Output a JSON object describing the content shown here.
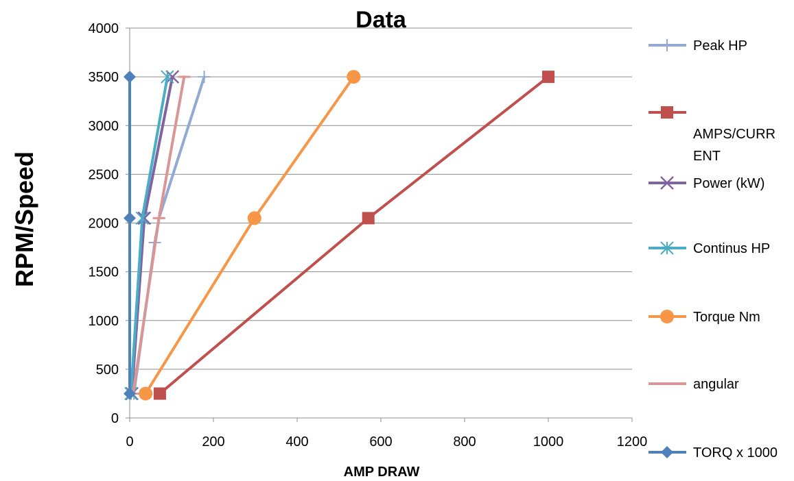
{
  "chart_data": {
    "type": "line",
    "title": "Data",
    "xlabel": "AMP DRAW",
    "ylabel": "RPM/Speed",
    "xlim": [
      0,
      1200
    ],
    "ylim": [
      0,
      4000
    ],
    "xticks": [
      0,
      200,
      400,
      600,
      800,
      1000,
      1200
    ],
    "yticks": [
      0,
      500,
      1000,
      1500,
      2000,
      2500,
      3000,
      3500,
      4000
    ],
    "grid": "horizontal",
    "legend_position": "right",
    "series": [
      {
        "name": "Peak HP",
        "color": "#93a9d4",
        "marker": "plus",
        "points": [
          [
            10,
            250
          ],
          [
            60,
            1800
          ],
          [
            70,
            2050
          ],
          [
            178,
            3500
          ]
        ]
      },
      {
        "name": "AMPS/CURRENT",
        "legend_lines": [
          "AMPS/CURR",
          "ENT"
        ],
        "color": "#c0504d",
        "marker": "square",
        "points": [
          [
            72,
            250
          ],
          [
            570,
            2050
          ],
          [
            1000,
            3500
          ]
        ]
      },
      {
        "name": "Power (kW)",
        "color": "#8064a2",
        "marker": "x",
        "points": [
          [
            5,
            250
          ],
          [
            35,
            2050
          ],
          [
            102,
            3500
          ]
        ]
      },
      {
        "name": "Continus HP",
        "color": "#4bacc6",
        "marker": "asterisk",
        "points": [
          [
            3,
            250
          ],
          [
            30,
            2050
          ],
          [
            90,
            3500
          ]
        ]
      },
      {
        "name": "Torque Nm",
        "color": "#f79646",
        "marker": "circle",
        "points": [
          [
            38,
            250
          ],
          [
            298,
            2050
          ],
          [
            535,
            3500
          ]
        ]
      },
      {
        "name": "angular",
        "color": "#d99694",
        "marker": "dash",
        "points": [
          [
            8,
            250
          ],
          [
            70,
            2050
          ],
          [
            130,
            3500
          ]
        ]
      },
      {
        "name": "TORQ x 1000",
        "color": "#4f81bd",
        "marker": "diamond",
        "points": [
          [
            0,
            250
          ],
          [
            0,
            2050
          ],
          [
            0,
            3500
          ]
        ]
      }
    ]
  }
}
